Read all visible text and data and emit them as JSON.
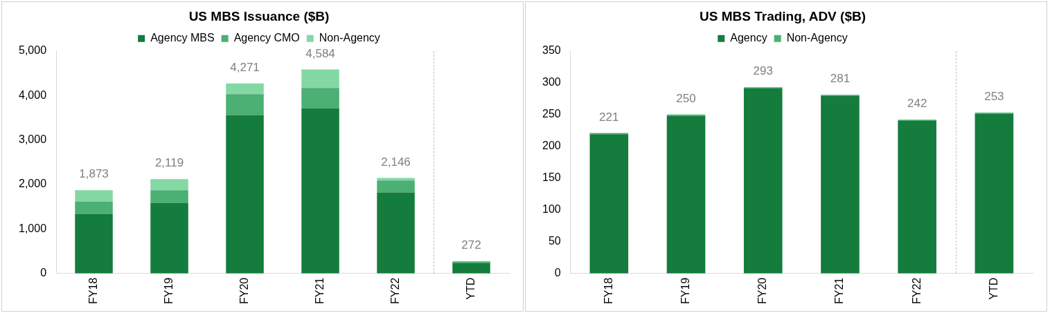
{
  "chart_data": [
    {
      "type": "bar",
      "title": "US MBS Issuance ($B)",
      "categories": [
        "FY18",
        "FY19",
        "FY20",
        "FY21",
        "FY22",
        "YTD"
      ],
      "stacked": true,
      "legend": "top",
      "series": [
        {
          "name": "Agency MBS",
          "color": "#147c3c",
          "values": [
            1330,
            1580,
            3560,
            3710,
            1820,
            230
          ]
        },
        {
          "name": "Agency CMO",
          "color": "#4caf73",
          "values": [
            280,
            290,
            470,
            460,
            270,
            40
          ]
        },
        {
          "name": "Non-Agency",
          "color": "#84d8a3",
          "values": [
            263,
            249,
            241,
            414,
            56,
            2
          ]
        }
      ],
      "totals": [
        "1,873",
        "2,119",
        "4,271",
        "4,584",
        "2,146",
        "272"
      ],
      "ylim": [
        0,
        5000
      ],
      "yticks": [
        {
          "value": 0,
          "label": "0"
        },
        {
          "value": 1000,
          "label": "1,000"
        },
        {
          "value": 2000,
          "label": "2,000"
        },
        {
          "value": 3000,
          "label": "3,000"
        },
        {
          "value": 4000,
          "label": "4,000"
        },
        {
          "value": 5000,
          "label": "5,000"
        }
      ]
    },
    {
      "type": "bar",
      "title": "US MBS Trading, ADV ($B)",
      "categories": [
        "FY18",
        "FY19",
        "FY20",
        "FY21",
        "FY22",
        "YTD"
      ],
      "stacked": true,
      "legend": "top",
      "series": [
        {
          "name": "Agency",
          "color": "#147c3c",
          "values": [
            219,
            248,
            291,
            279,
            240,
            251
          ]
        },
        {
          "name": "Non-Agency",
          "color": "#4caf73",
          "values": [
            2,
            2,
            2,
            2,
            2,
            2
          ]
        }
      ],
      "totals": [
        "221",
        "250",
        "293",
        "281",
        "242",
        "253"
      ],
      "ylim": [
        0,
        350
      ],
      "yticks": [
        0,
        50,
        100,
        150,
        200,
        250,
        300,
        350
      ]
    }
  ]
}
